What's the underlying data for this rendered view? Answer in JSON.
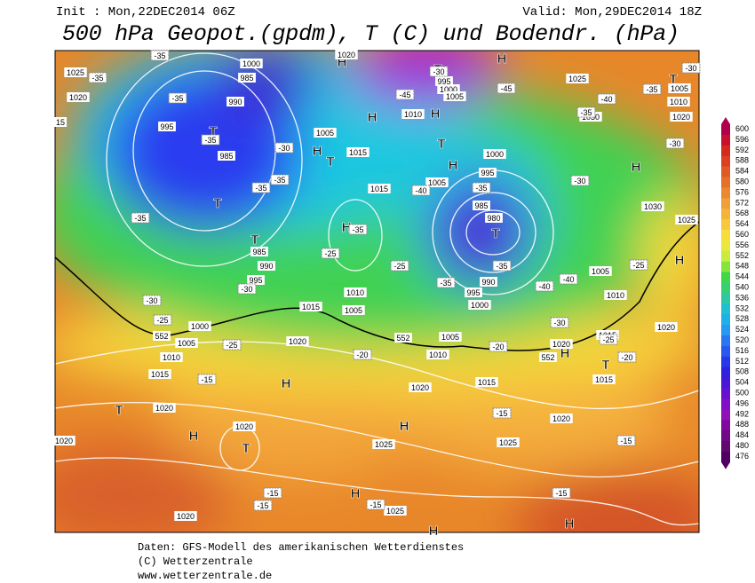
{
  "header": {
    "init": "Init : Mon,22DEC2014 06Z",
    "valid": "Valid: Mon,29DEC2014 18Z",
    "title": "500 hPa Geopot.(gpdm), T (C) und Bodendr. (hPa)"
  },
  "legend": {
    "levels": [
      600,
      596,
      592,
      588,
      584,
      580,
      576,
      572,
      568,
      564,
      560,
      556,
      552,
      548,
      544,
      540,
      536,
      532,
      528,
      524,
      520,
      516,
      512,
      508,
      504,
      500,
      496,
      492,
      488,
      484,
      480,
      476
    ]
  },
  "map": {
    "labels": [
      "1025",
      "1020",
      "995",
      "990",
      "985",
      "1000",
      "985",
      "T",
      "T",
      "T",
      "985",
      "990",
      "995",
      "1005",
      "H",
      "T",
      "1015",
      "1015",
      "H",
      "1010",
      "1005",
      "1015",
      "1000",
      "1005",
      "1010",
      "1015",
      "1020",
      "H",
      "1020",
      "T",
      "H",
      "1020",
      "T",
      "1020",
      "1020",
      "H",
      "1025",
      "H",
      "1020",
      "1015",
      "1020",
      "1025",
      "H",
      "H",
      "1025",
      "H",
      "T",
      "1015",
      "1020",
      "1015",
      "1020",
      "1010",
      "1005",
      "H",
      "1025",
      "1030",
      "H",
      "1030",
      "1025",
      "1005",
      "1010",
      "1020",
      "T",
      "H",
      "H",
      "1010",
      "H",
      "T",
      "H",
      "1000",
      "995",
      "1005",
      "985",
      "980",
      "T",
      "990",
      "995",
      "1000",
      "1005",
      "1010",
      "T",
      "995",
      "1000",
      "1005",
      "H",
      "1020",
      "15",
      "-35",
      "-35",
      "-35",
      "-35",
      "-30",
      "-35",
      "-35",
      "-30",
      "-35",
      "-30",
      "-25",
      "-25",
      "-25",
      "-20",
      "-15",
      "-35",
      "-25",
      "-40",
      "-35",
      "-35",
      "-35",
      "-40",
      "-40",
      "-30",
      "-25",
      "-20",
      "-25",
      "-30",
      "-35",
      "-40",
      "-35",
      "-30",
      "-30",
      "-45",
      "-45",
      "-30",
      "-15",
      "-15",
      "-15",
      "-15",
      "-15",
      "-15",
      "-20",
      "552",
      "552",
      "552"
    ]
  },
  "footer": {
    "source": "Daten: GFS-Modell des amerikanischen Wetterdienstes",
    "copyright": "(C) Wetterzentrale",
    "url": "www.wetterzentrale.de"
  }
}
